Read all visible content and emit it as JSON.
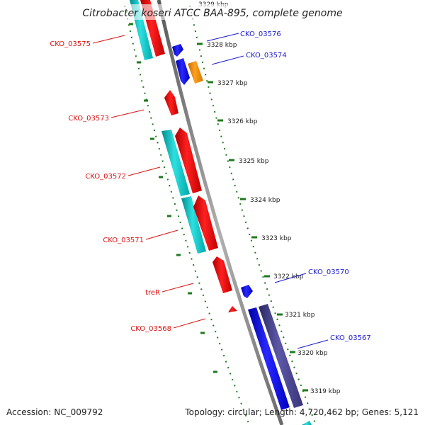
{
  "title": "Citrobacter koseri ATCC BAA-895, complete genome",
  "footer": {
    "accession": "Accession: NC_009792",
    "topology": "Topology: circular; Length: 4,720,462 bp; Genes: 5,121"
  },
  "colors": {
    "reverse_label": "#dd1111",
    "forward_label": "#1a1ad0",
    "tick": "#1e7a1e",
    "backbone": "#8a8a8a"
  },
  "kbp_ticks": [
    "3329 kbp",
    "3328 kbp",
    "3327 kbp",
    "3326 kbp",
    "3325 kbp",
    "3324 kbp",
    "3323 kbp",
    "3322 kbp",
    "3321 kbp",
    "3320 kbp",
    "3319 kbp"
  ],
  "genes_reverse": [
    {
      "label": "CKO_03575",
      "color": "red"
    },
    {
      "label": "CKO_03573",
      "color": "red"
    },
    {
      "label": "CKO_03572",
      "color": "red"
    },
    {
      "label": "CKO_03571",
      "color": "red"
    },
    {
      "label": "treR",
      "color": "red"
    },
    {
      "label": "CKO_03568",
      "color": "red"
    }
  ],
  "genes_forward": [
    {
      "label": "CKO_03576",
      "color": "blue"
    },
    {
      "label": "CKO_03574",
      "color": "orange"
    },
    {
      "label": "CKO_03570",
      "color": "blue"
    },
    {
      "label": "CKO_03567",
      "color": "slateblue"
    }
  ]
}
